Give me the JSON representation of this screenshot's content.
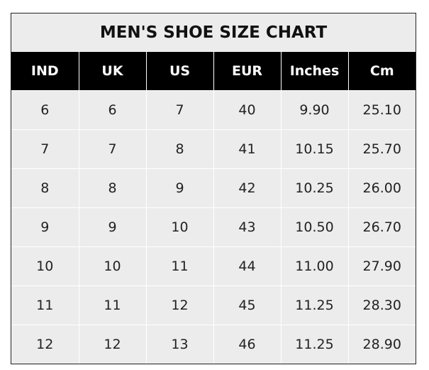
{
  "title": "MEN'S SHOE SIZE CHART",
  "headers": [
    "IND",
    "UK",
    "US",
    "EUR",
    "Inches",
    "Cm"
  ],
  "rows": [
    [
      "6",
      "6",
      "7",
      "40",
      "9.90",
      "25.10"
    ],
    [
      "7",
      "7",
      "8",
      "41",
      "10.15",
      "25.70"
    ],
    [
      "8",
      "8",
      "9",
      "42",
      "10.25",
      "26.00"
    ],
    [
      "9",
      "9",
      "10",
      "43",
      "10.50",
      "26.70"
    ],
    [
      "10",
      "10",
      "11",
      "44",
      "11.00",
      "27.90"
    ],
    [
      "11",
      "11",
      "12",
      "45",
      "11.25",
      "28.30"
    ],
    [
      "12",
      "12",
      "13",
      "46",
      "11.25",
      "28.90"
    ]
  ],
  "colors": {
    "header_bg": "#000000",
    "cell_bg": "#ececec"
  }
}
